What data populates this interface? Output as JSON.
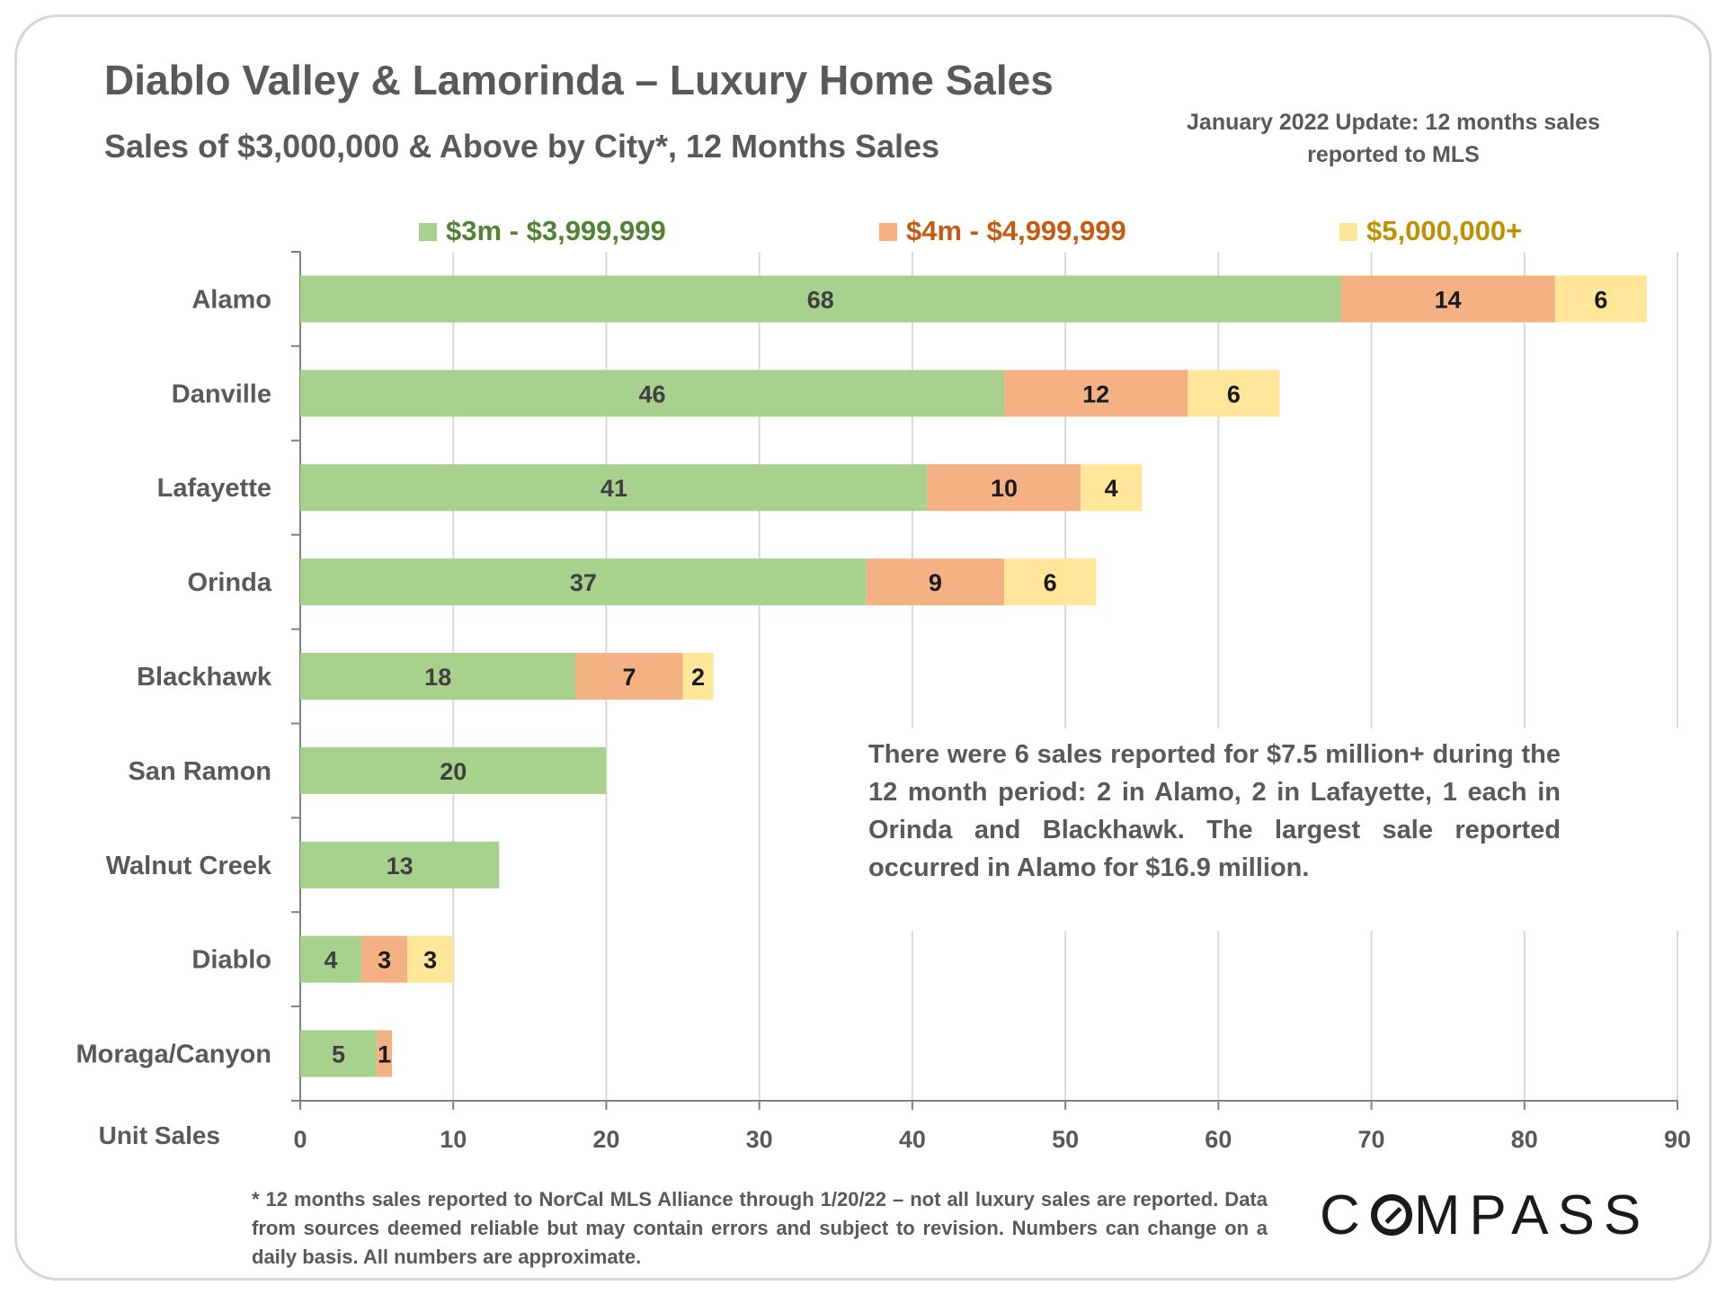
{
  "title": "Diablo Valley & Lamorinda – Luxury Home Sales",
  "subtitle": "Sales of $3,000,000 & Above by City*, 12 Months Sales",
  "update_note": "January 2022 Update: 12 months sales reported to MLS",
  "annotation": "There were 6 sales reported for $7.5 million+ during the 12 month period: 2 in Alamo, 2 in Lafayette, 1 each in Orinda and Blackhawk. The largest sale reported occurred in Alamo for $16.9 million.",
  "footnote": "* 12 months sales reported to NorCal MLS Alliance through 1/20/22 – not all luxury sales are reported. Data from sources deemed reliable but may contain errors and subject to revision. Numbers can change on a daily basis. All numbers are approximate.",
  "brand": "COMPASS",
  "colors": {
    "series1": "#a9d18e",
    "series2": "#f4b183",
    "series3": "#ffe699",
    "legend1_text": "#548235",
    "legend2_text": "#c55a11",
    "legend3_text": "#bf9000",
    "text": "#595959",
    "grid": "#d9d9d9"
  },
  "chart_data": {
    "type": "bar",
    "orientation": "horizontal",
    "stacked": true,
    "categories": [
      "Alamo",
      "Danville",
      "Lafayette",
      "Orinda",
      "Blackhawk",
      "San Ramon",
      "Walnut Creek",
      "Diablo",
      "Moraga/Canyon"
    ],
    "series": [
      {
        "name": "$3m - $3,999,999",
        "values": [
          68,
          46,
          41,
          37,
          18,
          20,
          13,
          4,
          5
        ]
      },
      {
        "name": "$4m - $4,999,999",
        "values": [
          14,
          12,
          10,
          9,
          7,
          0,
          0,
          3,
          1
        ]
      },
      {
        "name": "$5,000,000+",
        "values": [
          6,
          6,
          4,
          6,
          2,
          0,
          0,
          3,
          0
        ]
      }
    ],
    "xlabel": "Unit Sales",
    "xlim": [
      0,
      90
    ],
    "xticks": [
      0,
      10,
      20,
      30,
      40,
      50,
      60,
      70,
      80,
      90
    ],
    "grid": true,
    "legend_position": "top"
  }
}
